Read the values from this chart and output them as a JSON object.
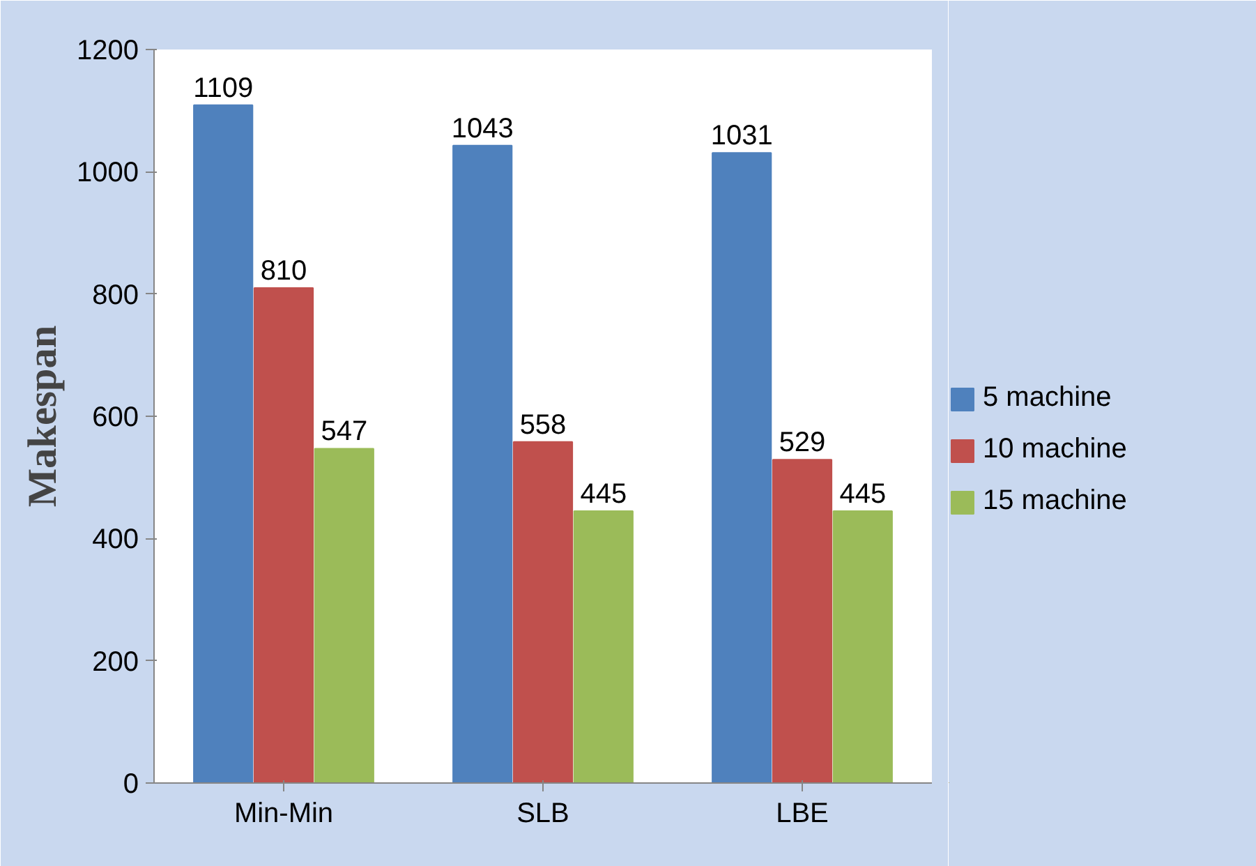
{
  "chart_data": {
    "type": "bar",
    "ylabel": "Makespan",
    "categories": [
      "Min-Min",
      "SLB",
      "LBE"
    ],
    "series": [
      {
        "name": "5 machine",
        "color": "#4f81bd",
        "values": [
          1109,
          1043,
          1031
        ]
      },
      {
        "name": "10 machine",
        "color": "#c0504d",
        "values": [
          810,
          558,
          529
        ]
      },
      {
        "name": "15 machine",
        "color": "#9bbb59",
        "values": [
          547,
          445,
          445
        ]
      }
    ],
    "ylim": [
      0,
      1200
    ],
    "yticks": [
      0,
      200,
      400,
      600,
      800,
      1000,
      1200
    ],
    "data_labels": true,
    "grid": false,
    "legend": "right"
  }
}
